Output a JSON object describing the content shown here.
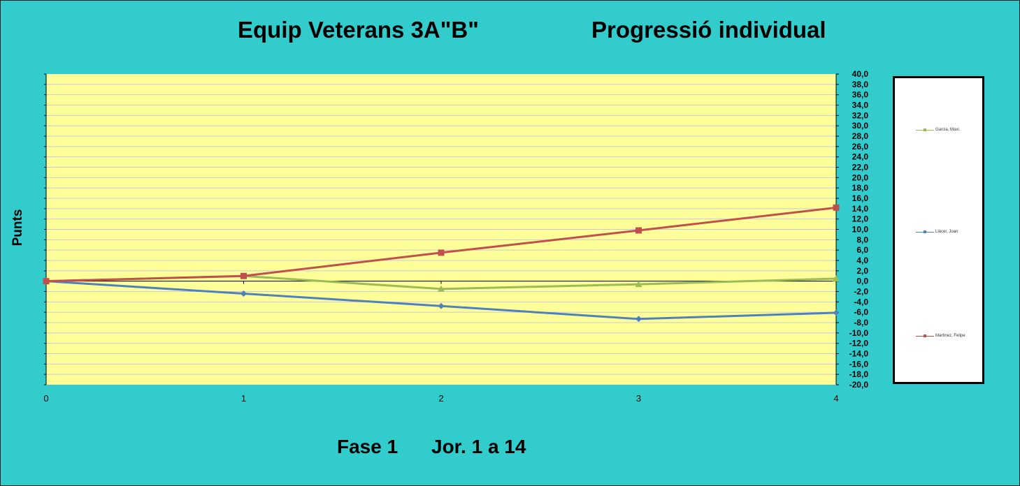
{
  "title": "Equip Veterans 3A\"B\"",
  "subtitle": "Progressió individual",
  "footer_phase": "Fase 1",
  "footer_rounds": "Jor.  1 a 14",
  "chart_data": {
    "type": "line",
    "xlabel": "",
    "ylabel": "Punts",
    "x": [
      0,
      1,
      2,
      3,
      4
    ],
    "xlim": [
      0,
      4
    ],
    "ylim": [
      -20,
      40
    ],
    "y_tick_step": 2,
    "y_tick_labels": [
      "40,0",
      "38,0",
      "36,0",
      "34,0",
      "32,0",
      "30,0",
      "28,0",
      "26,0",
      "24,0",
      "22,0",
      "20,0",
      "18,0",
      "16,0",
      "14,0",
      "12,0",
      "10,0",
      "8,0",
      "6,0",
      "4,0",
      "2,0",
      "0,0",
      "-2,0",
      "-4,0",
      "-6,0",
      "-8,0",
      "-10,0",
      "-12,0",
      "-14,0",
      "-16,0",
      "-18,0",
      "-20,0"
    ],
    "x_tick_labels": [
      "0",
      "1",
      "2",
      "3",
      "4"
    ],
    "grid": true,
    "y_axis_side": "right",
    "legend_position": "right",
    "plot_background": "#ffff99",
    "series": [
      {
        "name": "Garcia, Maxi.",
        "values": [
          0,
          1,
          -1.5,
          -0.6,
          0.5
        ],
        "color": "#9bbb59",
        "marker": "triangle"
      },
      {
        "name": "Llàcer, Joan",
        "values": [
          0,
          -2.4,
          -4.8,
          -7.3,
          -6.1
        ],
        "color": "#4f81bd",
        "marker": "diamond"
      },
      {
        "name": "Martinez, Felipe",
        "values": [
          0,
          1,
          5.5,
          9.8,
          14.2
        ],
        "color": "#c0504d",
        "marker": "square"
      }
    ]
  }
}
